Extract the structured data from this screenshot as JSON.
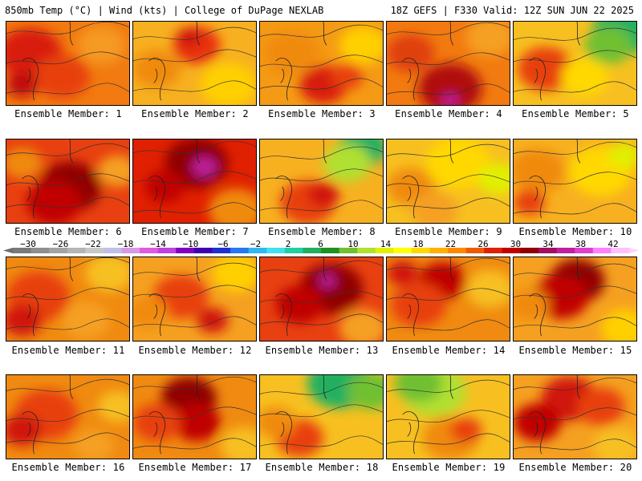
{
  "header": {
    "left": "850mb Temp (°C) | Wind (kts) | College of DuPage NEXLAB",
    "right": "18Z GEFS | F330 Valid: 12Z SUN JUN 22 2025"
  },
  "colorbar": {
    "labels": [
      "−30",
      "−26",
      "−22",
      "−18",
      "−14",
      "−10",
      "−6",
      "−2",
      "2",
      "6",
      "10",
      "14",
      "18",
      "22",
      "26",
      "30",
      "34",
      "38",
      "42"
    ],
    "colors": [
      "#7a7a7a",
      "#8f8f8f",
      "#a3a3a3",
      "#b5b5b5",
      "#c8c8c8",
      "#bfbfe6",
      "#d699e6",
      "#e05ae0",
      "#c040e0",
      "#8000c0",
      "#4000b0",
      "#2030d0",
      "#2878f0",
      "#30b8f0",
      "#40e0f0",
      "#20d0a0",
      "#20b060",
      "#209020",
      "#70c030",
      "#b0e030",
      "#e0f000",
      "#ffff00",
      "#ffd800",
      "#ffb000",
      "#ff8a00",
      "#f05a00",
      "#e02000",
      "#c00000",
      "#900000",
      "#a01060",
      "#c020a0",
      "#e040d0",
      "#ff80ff",
      "#ffc0ff"
    ]
  },
  "members": [
    {
      "label": "Ensemble Member: 1",
      "base": "#f27a10",
      "blobs": [
        [
          "#d81a10",
          30,
          40,
          40
        ],
        [
          "#e84010",
          70,
          70,
          35
        ],
        [
          "#f59a20",
          120,
          30,
          30
        ],
        [
          "#c01010",
          20,
          80,
          20
        ]
      ]
    },
    {
      "label": "Ensemble Member: 2",
      "base": "#f7b020",
      "blobs": [
        [
          "#e83010",
          80,
          30,
          30
        ],
        [
          "#f08a10",
          30,
          60,
          30
        ],
        [
          "#ffd000",
          120,
          80,
          35
        ],
        [
          "#d01410",
          70,
          20,
          15
        ]
      ]
    },
    {
      "label": "Ensemble Member: 3",
      "base": "#f59a15",
      "blobs": [
        [
          "#d81a10",
          80,
          80,
          30
        ],
        [
          "#f08a10",
          40,
          40,
          35
        ],
        [
          "#ffd000",
          130,
          30,
          30
        ],
        [
          "#e84010",
          110,
          70,
          20
        ]
      ]
    },
    {
      "label": "Ensemble Member: 4",
      "base": "#f27a10",
      "blobs": [
        [
          "#b00a10",
          80,
          85,
          40
        ],
        [
          "#c020a0",
          80,
          100,
          10
        ],
        [
          "#e04010",
          30,
          40,
          30
        ],
        [
          "#f5a020",
          130,
          20,
          30
        ]
      ]
    },
    {
      "label": "Ensemble Member: 5",
      "base": "#f7c020",
      "blobs": [
        [
          "#20b060",
          140,
          10,
          40
        ],
        [
          "#70c030",
          120,
          30,
          30
        ],
        [
          "#e84010",
          40,
          60,
          35
        ],
        [
          "#ffd800",
          90,
          70,
          30
        ]
      ]
    },
    {
      "label": "Ensemble Member: 6",
      "base": "#e84010",
      "blobs": [
        [
          "#900000",
          80,
          60,
          40
        ],
        [
          "#c00000",
          60,
          80,
          35
        ],
        [
          "#f08a10",
          20,
          30,
          25
        ],
        [
          "#f5a020",
          140,
          40,
          25
        ]
      ]
    },
    {
      "label": "Ensemble Member: 7",
      "base": "#e02000",
      "blobs": [
        [
          "#900000",
          80,
          30,
          40
        ],
        [
          "#c020a0",
          90,
          35,
          15
        ],
        [
          "#f08a10",
          130,
          90,
          35
        ],
        [
          "#c00000",
          40,
          60,
          25
        ]
      ]
    },
    {
      "label": "Ensemble Member: 8",
      "base": "#f7b020",
      "blobs": [
        [
          "#20b060",
          130,
          10,
          30
        ],
        [
          "#b0e030",
          110,
          30,
          30
        ],
        [
          "#e84010",
          60,
          80,
          35
        ],
        [
          "#d01410",
          80,
          70,
          20
        ]
      ]
    },
    {
      "label": "Ensemble Member: 9",
      "base": "#f7c020",
      "blobs": [
        [
          "#ffd800",
          90,
          30,
          40
        ],
        [
          "#f08a10",
          30,
          60,
          30
        ],
        [
          "#e0f000",
          140,
          50,
          25
        ],
        [
          "#f5a020",
          60,
          90,
          30
        ]
      ]
    },
    {
      "label": "Ensemble Member: 10",
      "base": "#f7b020",
      "blobs": [
        [
          "#f08a10",
          30,
          40,
          35
        ],
        [
          "#ffd800",
          110,
          40,
          40
        ],
        [
          "#e0f000",
          140,
          20,
          20
        ],
        [
          "#e84010",
          20,
          80,
          20
        ]
      ]
    },
    {
      "label": "Ensemble Member: 11",
      "base": "#f08a10",
      "blobs": [
        [
          "#e84010",
          40,
          50,
          40
        ],
        [
          "#d01410",
          20,
          80,
          25
        ],
        [
          "#f7c020",
          130,
          20,
          30
        ],
        [
          "#f5a020",
          100,
          80,
          30
        ]
      ]
    },
    {
      "label": "Ensemble Member: 12",
      "base": "#f5a020",
      "blobs": [
        [
          "#e84010",
          60,
          50,
          35
        ],
        [
          "#d01410",
          100,
          80,
          20
        ],
        [
          "#f08a10",
          20,
          70,
          25
        ],
        [
          "#ffd000",
          130,
          20,
          30
        ]
      ]
    },
    {
      "label": "Ensemble Member: 13",
      "base": "#e84010",
      "blobs": [
        [
          "#900000",
          90,
          40,
          40
        ],
        [
          "#c020a0",
          85,
          30,
          10
        ],
        [
          "#c00000",
          50,
          60,
          30
        ],
        [
          "#f5a020",
          130,
          90,
          30
        ]
      ]
    },
    {
      "label": "Ensemble Member: 14",
      "base": "#f08a10",
      "blobs": [
        [
          "#c00000",
          70,
          30,
          30
        ],
        [
          "#e84010",
          40,
          60,
          35
        ],
        [
          "#f7c020",
          130,
          40,
          30
        ],
        [
          "#d01410",
          20,
          20,
          20
        ]
      ]
    },
    {
      "label": "Ensemble Member: 15",
      "base": "#f5a020",
      "blobs": [
        [
          "#900000",
          80,
          30,
          35
        ],
        [
          "#c00000",
          60,
          50,
          35
        ],
        [
          "#f08a10",
          20,
          60,
          25
        ],
        [
          "#ffd000",
          140,
          90,
          30
        ]
      ]
    },
    {
      "label": "Ensemble Member: 16",
      "base": "#f08a10",
      "blobs": [
        [
          "#e84010",
          50,
          50,
          40
        ],
        [
          "#d01410",
          20,
          70,
          25
        ],
        [
          "#f7c020",
          140,
          40,
          25
        ],
        [
          "#f5a020",
          110,
          90,
          25
        ]
      ]
    },
    {
      "label": "Ensemble Member: 17",
      "base": "#f08a10",
      "blobs": [
        [
          "#900000",
          70,
          30,
          35
        ],
        [
          "#c00000",
          80,
          60,
          30
        ],
        [
          "#e84010",
          30,
          60,
          30
        ],
        [
          "#f7c020",
          140,
          90,
          30
        ]
      ]
    },
    {
      "label": "Ensemble Member: 18",
      "base": "#f7c020",
      "blobs": [
        [
          "#20b060",
          100,
          10,
          40
        ],
        [
          "#70c030",
          140,
          20,
          30
        ],
        [
          "#e84010",
          50,
          80,
          30
        ],
        [
          "#f08a10",
          20,
          60,
          25
        ]
      ]
    },
    {
      "label": "Ensemble Member: 19",
      "base": "#f7c020",
      "blobs": [
        [
          "#b0e030",
          60,
          20,
          40
        ],
        [
          "#70c030",
          40,
          10,
          30
        ],
        [
          "#f08a10",
          80,
          80,
          35
        ],
        [
          "#e84010",
          100,
          70,
          20
        ]
      ]
    },
    {
      "label": "Ensemble Member: 20",
      "base": "#f5a020",
      "blobs": [
        [
          "#d01410",
          70,
          30,
          35
        ],
        [
          "#c00000",
          30,
          60,
          30
        ],
        [
          "#e84010",
          110,
          40,
          30
        ],
        [
          "#f7c020",
          130,
          90,
          30
        ]
      ]
    }
  ]
}
